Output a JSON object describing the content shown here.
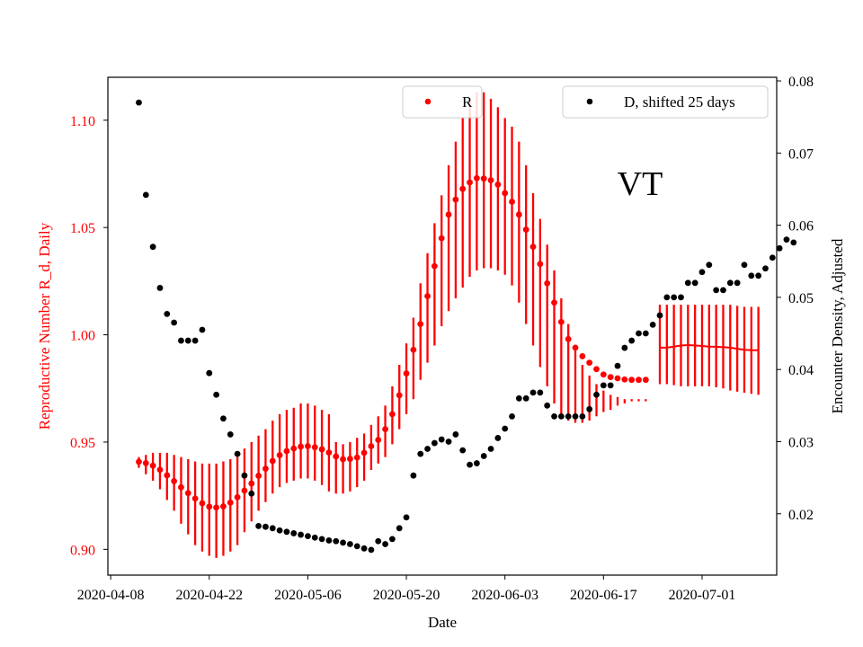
{
  "chart_data": {
    "type": "scatter",
    "title": "VT",
    "xlabel": "Date",
    "ylabel_left": "Reproductive Number R_d, Daily",
    "ylabel_right": "Encounter Density, Adjusted",
    "x_tick_labels": [
      "2020-04-08",
      "2020-04-22",
      "2020-05-06",
      "2020-05-20",
      "2020-06-03",
      "2020-06-17",
      "2020-07-01"
    ],
    "x_tick_days": [
      0,
      14,
      28,
      42,
      56,
      70,
      84
    ],
    "xlim_days": [
      -0.4,
      94.6
    ],
    "ylim_left": [
      0.888,
      1.12
    ],
    "ylim_right": [
      0.0115,
      0.0805
    ],
    "y_left_ticks": [
      0.9,
      0.95,
      1.0,
      1.05,
      1.1
    ],
    "y_left_tick_labels": [
      "0.90",
      "0.95",
      "1.00",
      "1.05",
      "1.10"
    ],
    "y_right_ticks": [
      0.02,
      0.03,
      0.04,
      0.05,
      0.06,
      0.07,
      0.08
    ],
    "y_right_tick_labels": [
      "0.02",
      "0.03",
      "0.04",
      "0.05",
      "0.06",
      "0.07",
      "0.08"
    ],
    "colors": {
      "R": "#ff0000",
      "D": "#000000",
      "left_axis_text": "#ff0000"
    },
    "legend": [
      {
        "name": "R",
        "marker": "red-dot",
        "position": "top-center"
      },
      {
        "name": "D, shifted 25 days",
        "marker": "black-dot",
        "position": "top-right"
      }
    ],
    "series_R": {
      "name": "R",
      "axis": "left",
      "x_start_day": 4,
      "values": [
        0.9408,
        0.9402,
        0.939,
        0.9371,
        0.9345,
        0.9318,
        0.9289,
        0.9262,
        0.9237,
        0.9215,
        0.9199,
        0.9195,
        0.92,
        0.9218,
        0.9243,
        0.9274,
        0.9307,
        0.9343,
        0.9376,
        0.9412,
        0.9439,
        0.9458,
        0.947,
        0.9479,
        0.9481,
        0.9476,
        0.9466,
        0.9451,
        0.9433,
        0.942,
        0.9422,
        0.9428,
        0.945,
        0.9481,
        0.951,
        0.956,
        0.963,
        0.9718,
        0.982,
        0.993,
        1.005,
        1.018,
        1.032,
        1.045,
        1.056,
        1.063,
        1.068,
        1.071,
        1.073,
        1.0728,
        1.072,
        1.07,
        1.066,
        1.062,
        1.056,
        1.049,
        1.041,
        1.033,
        1.024,
        1.015,
        1.006,
        0.998,
        0.994,
        0.99,
        0.987,
        0.984,
        0.9815,
        0.9803,
        0.9797,
        0.9792,
        0.979,
        0.979,
        0.979
      ],
      "err_lo": [
        0.938,
        0.935,
        0.932,
        0.928,
        0.923,
        0.918,
        0.912,
        0.907,
        0.902,
        0.899,
        0.897,
        0.896,
        0.897,
        0.899,
        0.902,
        0.908,
        0.913,
        0.918,
        0.922,
        0.926,
        0.929,
        0.931,
        0.932,
        0.933,
        0.933,
        0.932,
        0.93,
        0.927,
        0.926,
        0.926,
        0.927,
        0.929,
        0.932,
        0.937,
        0.94,
        0.943,
        0.949,
        0.956,
        0.963,
        0.97,
        0.979,
        0.987,
        0.995,
        1.004,
        1.011,
        1.017,
        1.022,
        1.027,
        1.03,
        1.031,
        1.031,
        1.03,
        1.028,
        1.023,
        1.015,
        1.005,
        0.995,
        0.985,
        0.976,
        0.968,
        0.961,
        0.96,
        0.959,
        0.959,
        0.96,
        0.962,
        0.964,
        0.965,
        0.967,
        0.968,
        0.969,
        0.969,
        0.969
      ],
      "err_hi": [
        0.943,
        0.944,
        0.945,
        0.945,
        0.945,
        0.944,
        0.943,
        0.942,
        0.941,
        0.94,
        0.94,
        0.94,
        0.941,
        0.942,
        0.943,
        0.947,
        0.95,
        0.953,
        0.956,
        0.96,
        0.963,
        0.965,
        0.966,
        0.968,
        0.968,
        0.967,
        0.965,
        0.963,
        0.95,
        0.949,
        0.95,
        0.952,
        0.954,
        0.958,
        0.962,
        0.967,
        0.976,
        0.986,
        0.996,
        1.008,
        1.024,
        1.038,
        1.052,
        1.065,
        1.079,
        1.09,
        1.101,
        1.109,
        1.113,
        1.113,
        1.11,
        1.106,
        1.101,
        1.097,
        1.09,
        1.079,
        1.066,
        1.054,
        1.042,
        1.03,
        1.017,
        1.005,
        0.993,
        0.986,
        0.981,
        0.977,
        0.974,
        0.972,
        0.971,
        0.97,
        0.97,
        0.97,
        0.97
      ]
    },
    "series_R_projection": {
      "name": "R (projection)",
      "axis": "left",
      "x_start_day": 78,
      "values": [
        0.994,
        0.994,
        0.9945,
        0.995,
        0.9952,
        0.995,
        0.9948,
        0.9945,
        0.9944,
        0.9942,
        0.994,
        0.9935,
        0.993,
        0.9928,
        0.9928
      ],
      "err_lo": [
        0.977,
        0.977,
        0.9765,
        0.976,
        0.976,
        0.976,
        0.976,
        0.976,
        0.9755,
        0.975,
        0.974,
        0.9735,
        0.973,
        0.9725,
        0.972
      ],
      "err_hi": [
        1.014,
        1.014,
        1.014,
        1.014,
        1.014,
        1.014,
        1.014,
        1.014,
        1.014,
        1.014,
        1.014,
        1.0135,
        1.013,
        1.013,
        1.013
      ]
    },
    "series_D": {
      "name": "D, shifted 25 days",
      "axis": "right",
      "x_start_day": 4,
      "values": [
        0.077,
        0.0642,
        0.057,
        0.0513,
        0.0477,
        0.0465,
        0.044,
        0.044,
        0.044,
        0.0455,
        0.0395,
        0.0365,
        0.0332,
        0.031,
        0.0283,
        0.0253,
        0.0228,
        0.0183,
        0.0182,
        0.018,
        0.0177,
        0.0175,
        0.0173,
        0.0171,
        0.0169,
        0.0167,
        0.0165,
        0.0163,
        0.0162,
        0.016,
        0.0158,
        0.0155,
        0.0152,
        0.015,
        0.0162,
        0.0158,
        0.0165,
        0.018,
        0.0195,
        0.0253,
        0.0283,
        0.029,
        0.0298,
        0.0303,
        0.03,
        0.031,
        0.0288,
        0.0268,
        0.027,
        0.028,
        0.029,
        0.0305,
        0.0318,
        0.0335,
        0.036,
        0.036,
        0.0368,
        0.0368,
        0.035,
        0.0335,
        0.0335,
        0.0335,
        0.0335,
        0.0335,
        0.0345,
        0.0365,
        0.0378,
        0.0378,
        0.0405,
        0.043,
        0.044,
        0.045,
        0.045,
        0.0462,
        0.0475,
        0.05,
        0.05,
        0.05,
        0.052,
        0.052,
        0.0535,
        0.0545,
        0.051,
        0.051,
        0.052,
        0.052,
        0.0545,
        0.053,
        0.053,
        0.054,
        0.0555,
        0.0568,
        0.058,
        0.0576
      ]
    }
  }
}
